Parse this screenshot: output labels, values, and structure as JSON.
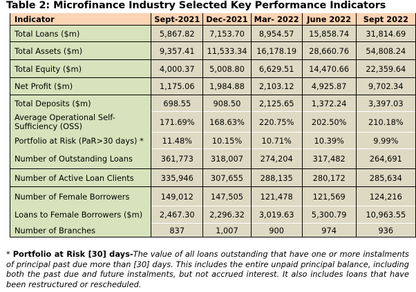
{
  "title": "Table 2: Microfinance Industry Selected Key Performance Indicators",
  "table": {
    "headers": [
      "Indicator",
      "Sept-2021",
      "Dec-2021",
      "Mar- 2022",
      "June 2022",
      "Sept 2022"
    ],
    "rows": [
      {
        "label": "Total Loans ($m)",
        "values": [
          "5,867.82",
          "7,153.70",
          "8,954.57",
          "15,858.74",
          "31,814.69"
        ]
      },
      {
        "label": "Total Assets ($m)",
        "values": [
          "9,357.41",
          "11,533.34",
          "16,178.19",
          "28,660.76",
          "54,808.24"
        ]
      },
      {
        "label": "Total Equity ($m)",
        "values": [
          "4,000.37",
          "5,008.80",
          "6,629.51",
          "14,470.66",
          "22,359.64"
        ]
      },
      {
        "label": "Net Profit ($m)",
        "values": [
          "1,175.06",
          "1,984.88",
          "2,103.12",
          "4,925.87",
          "9,702.34"
        ]
      },
      {
        "label": "Total Deposits ($m)",
        "values": [
          "698.55",
          "908.50",
          "2,125.65",
          "1,372.24",
          "3,397.03"
        ]
      },
      {
        "label": "Average Operational Self-Sufficiency (OSS)",
        "values": [
          "171.69%",
          "168.63%",
          "220.75%",
          "202.50%",
          "210.18%"
        ]
      },
      {
        "label": "Portfolio at Risk (PaR>30 days) *",
        "values": [
          "11.48%",
          "10.15%",
          "10.71%",
          "10.39%",
          "9.99%"
        ]
      },
      {
        "label": "Number of Outstanding Loans",
        "values": [
          "361,773",
          "318,007",
          "274,204",
          "317,482",
          "264,691"
        ]
      },
      {
        "label": "Number of Active Loan Clients",
        "values": [
          "335,946",
          "307,655",
          "288,135",
          "280,172",
          "285,634"
        ]
      },
      {
        "label": "Number of Female Borrowers",
        "values": [
          "149,012",
          "147,505",
          "121,478",
          "121,569",
          "124,216"
        ]
      },
      {
        "label": "Loans to Female Borrowers ($m)",
        "values": [
          "2,467.30",
          "2,296.32",
          "3,019.63",
          "5,300.79",
          "10,963.55"
        ]
      },
      {
        "label": "Number of Branches",
        "values": [
          "837",
          "1,007",
          "900",
          "974",
          "936"
        ]
      }
    ]
  },
  "footnote": {
    "marker": "* ",
    "term": "Portfolio at Risk [30] days-",
    "definition": "The value of all loans outstanding that have one or more instalments of principal past due more than [30] days. This includes the entire unpaid principal balance, including both the past due and future instalments, but not accrued interest. It also includes loans that have been restructured or rescheduled."
  },
  "colors": {
    "header_bg": "#fbd4b4",
    "label_bg": "#d6e3bc",
    "value_bg": "#ddd9c3"
  }
}
